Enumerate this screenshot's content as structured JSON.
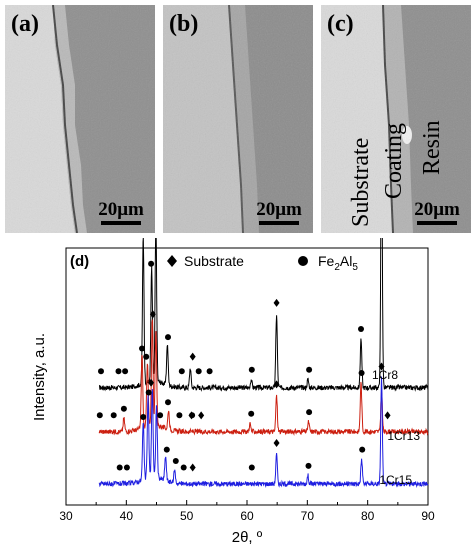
{
  "panels": [
    {
      "label": "(a)",
      "scale": "20μm"
    },
    {
      "label": "(b)",
      "scale": "20μm"
    },
    {
      "label": "(c)",
      "scale": "20μm",
      "layers": [
        "Substrate",
        "Coating",
        "Resin"
      ]
    }
  ],
  "chart_data": {
    "type": "line",
    "panel_label": "(d)",
    "xlabel": "2θ, º",
    "ylabel": "Intensity, a.u.",
    "xlim": [
      30,
      90
    ],
    "xticks": [
      30,
      40,
      50,
      60,
      70,
      80,
      90
    ],
    "legend": [
      {
        "marker": "diamond",
        "label": "Substrate"
      },
      {
        "marker": "circle",
        "label": "Fe2Al5",
        "label_main": "Fe",
        "sub1": "2",
        "mid": "Al",
        "sub2": "5"
      }
    ],
    "series": [
      {
        "name": "1Cr8",
        "color": "#000000",
        "baseline": 0.72,
        "peaks": [
          [
            42.8,
            0.9
          ],
          [
            44.2,
            0.7
          ],
          [
            44.9,
            0.98
          ],
          [
            46.8,
            0.25
          ],
          [
            50.6,
            0.12
          ],
          [
            60.7,
            0.05
          ],
          [
            64.9,
            0.45
          ],
          [
            70.1,
            0.05
          ],
          [
            78.9,
            0.3
          ],
          [
            82.3,
            1.55
          ]
        ],
        "circles": [
          35.8,
          38.7,
          39.8,
          42.7,
          44.1,
          46.9,
          49.2,
          52.0,
          53.8,
          60.8,
          70.3,
          78.9
        ],
        "diamonds": [
          44.9,
          51.0,
          64.9,
          82.3
        ]
      },
      {
        "name": "1Cr13",
        "color": "#cc1f10",
        "baseline": 0.45,
        "peaks": [
          [
            39.6,
            0.08
          ],
          [
            42.6,
            0.45
          ],
          [
            43.5,
            0.4
          ],
          [
            44.3,
            0.65
          ],
          [
            44.9,
            0.6
          ],
          [
            47.0,
            0.12
          ],
          [
            60.5,
            0.05
          ],
          [
            64.9,
            0.22
          ],
          [
            70.2,
            0.06
          ],
          [
            78.9,
            0.3
          ],
          [
            82.3,
            0.25
          ]
        ],
        "circles": [
          35.6,
          37.9,
          39.6,
          42.6,
          43.3,
          45.6,
          46.9,
          48.8,
          50.9,
          60.7,
          70.3,
          79.0
        ],
        "diamonds": [
          44.4,
          50.8,
          52.4,
          64.9,
          83.3
        ]
      },
      {
        "name": "1Cr15",
        "color": "#1f1fe0",
        "baseline": 0.13,
        "peaks": [
          [
            42.8,
            0.35
          ],
          [
            43.6,
            0.5
          ],
          [
            44.3,
            0.55
          ],
          [
            45.0,
            0.45
          ],
          [
            46.5,
            0.15
          ],
          [
            48.0,
            0.08
          ],
          [
            64.9,
            0.18
          ],
          [
            70.1,
            0.05
          ],
          [
            79.0,
            0.15
          ],
          [
            82.3,
            0.65
          ]
        ],
        "circles": [
          38.9,
          40.1,
          42.8,
          43.7,
          46.7,
          48.2,
          49.5,
          60.8,
          70.2,
          79.1
        ],
        "diamonds": [
          44.1,
          51.0,
          64.9,
          82.3
        ]
      }
    ]
  }
}
